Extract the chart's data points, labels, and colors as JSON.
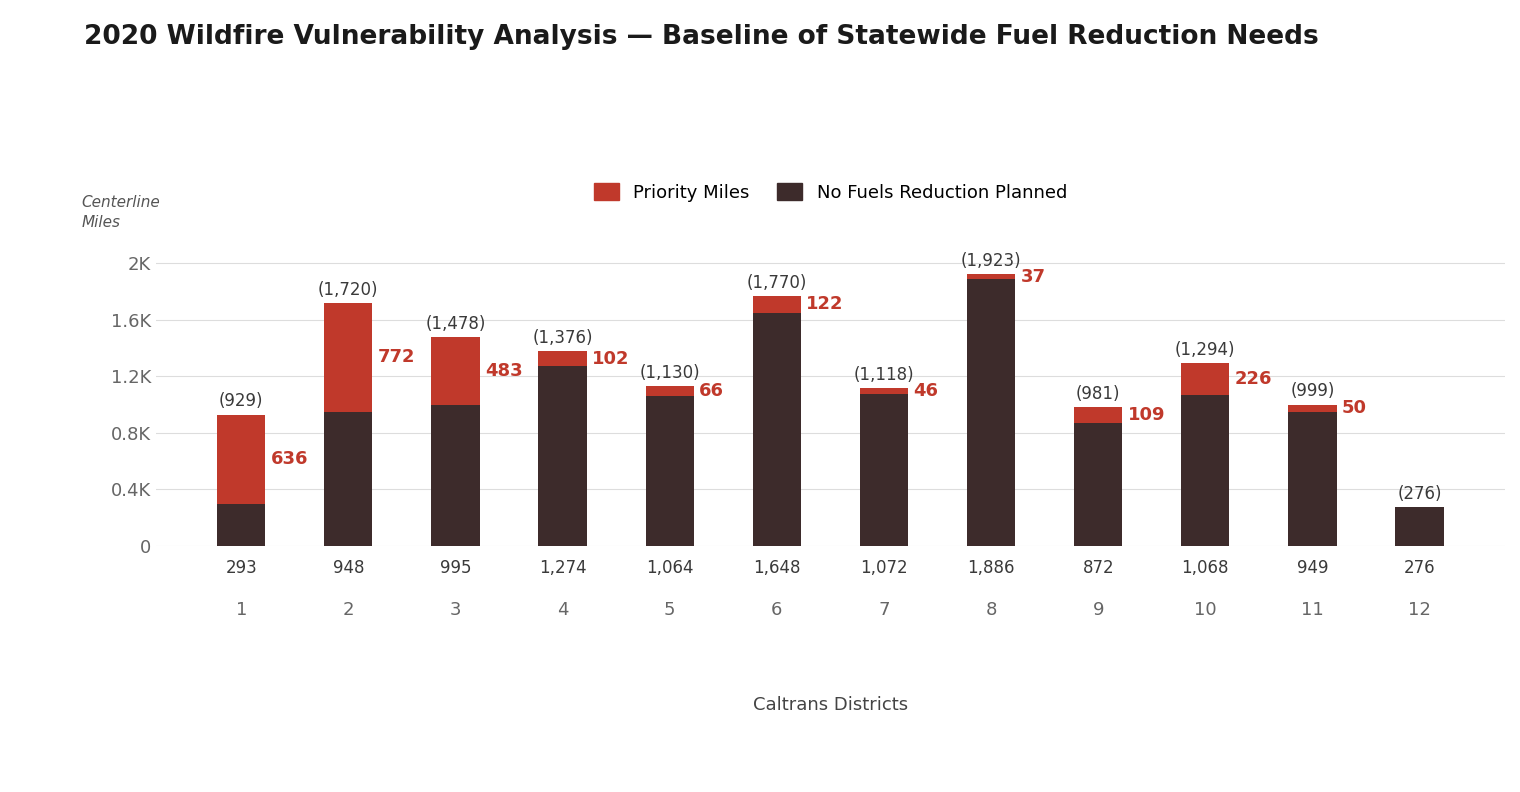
{
  "title": "2020 Wildfire Vulnerability Analysis — Baseline of Statewide Fuel Reduction Needs",
  "xlabel": "Caltrans Districts",
  "districts": [
    "1",
    "2",
    "3",
    "4",
    "5",
    "6",
    "7",
    "8",
    "9",
    "10",
    "11",
    "12"
  ],
  "centerline_miles": [
    929,
    1720,
    1478,
    1376,
    1130,
    1770,
    1118,
    1923,
    981,
    1294,
    999,
    276
  ],
  "priority_miles": [
    636,
    772,
    483,
    102,
    66,
    122,
    46,
    37,
    109,
    226,
    50,
    0
  ],
  "no_fuels_planned": [
    293,
    948,
    995,
    1274,
    1064,
    1648,
    1072,
    1886,
    872,
    1068,
    949,
    276
  ],
  "priority_color": "#c0392b",
  "no_fuels_color": "#3d2b2b",
  "background_color": "#ffffff",
  "legend_priority_label": "Priority Miles",
  "legend_no_fuels_label": "No Fuels Reduction Planned",
  "title_fontsize": 19,
  "xlabel_fontsize": 13,
  "tick_fontsize": 13,
  "annotation_fontsize": 12,
  "priority_annotation_fontsize": 13,
  "centerline_annotation_fontsize": 12,
  "ylim": [
    0,
    2200
  ],
  "yticks": [
    0,
    400,
    800,
    1200,
    1600,
    2000
  ],
  "ytick_labels": [
    "0",
    "0.4K",
    "0.8K",
    "1.2K",
    "1.6K",
    "2K"
  ],
  "bar_width": 0.45,
  "ylabel_text": "Centerline\nMiles"
}
